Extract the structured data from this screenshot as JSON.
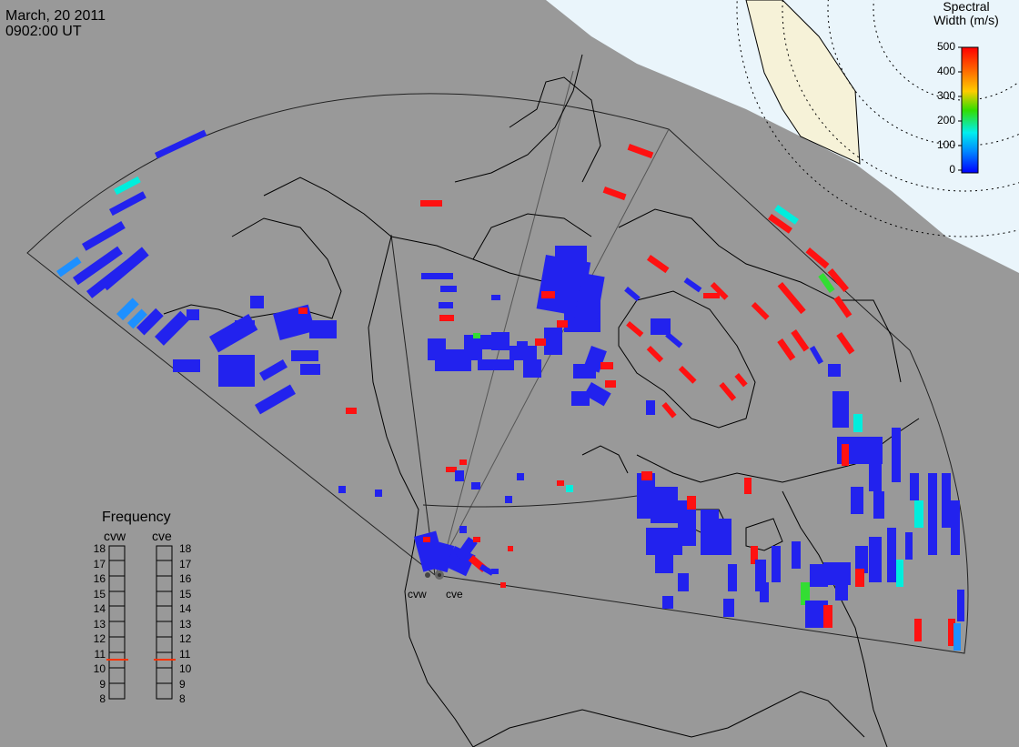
{
  "header": {
    "date": "March, 20 2011",
    "time": "0902:00 UT"
  },
  "legend": {
    "title_line1": "Spectral",
    "title_line2": "Width (m/s)",
    "ticks": [
      "500",
      "400",
      "300",
      "200",
      "100",
      "0"
    ],
    "colors": [
      "#ff0000",
      "#ff8800",
      "#ffff00",
      "#00dd00",
      "#00ffff",
      "#0088ff",
      "#0000ff"
    ]
  },
  "frequency_panel": {
    "title": "Frequency",
    "radars": [
      {
        "name": "cvw",
        "selected_mhz": 11,
        "marker_color": "#ff3300"
      },
      {
        "name": "cve",
        "selected_mhz": 11,
        "marker_color": "#ff3300"
      }
    ],
    "scale": [
      "18",
      "17",
      "16",
      "15",
      "14",
      "13",
      "12",
      "11",
      "10",
      "9",
      "8"
    ]
  },
  "radar_sites": [
    {
      "id": "cvw",
      "label": "cvw"
    },
    {
      "id": "cve",
      "label": "cve"
    }
  ],
  "colors": {
    "background": "#999999",
    "daylight": "#eaf5fb",
    "land_tint": "#f6f2d8",
    "echo_blue": "#2222ee",
    "echo_red": "#ff1111",
    "echo_cyan": "#00eedd",
    "echo_green": "#33dd33",
    "echo_light_blue": "#1e90ff"
  }
}
